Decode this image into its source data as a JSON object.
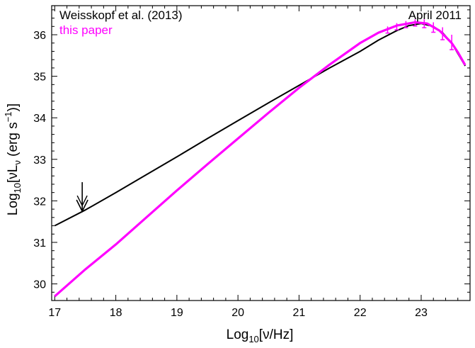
{
  "chart_data": {
    "type": "line",
    "xlabel": {
      "prefix": "Log",
      "sub": "10",
      "body": "[ν/Hz]"
    },
    "ylabel": {
      "prefix": "Log",
      "sub": "10",
      "body": "[νL",
      "body_sub": "ν",
      "unit_open": " (erg s",
      "unit_sup": "−1",
      "unit_close": ")]"
    },
    "xlim": [
      16.95,
      23.8
    ],
    "ylim": [
      29.6,
      36.7
    ],
    "x_ticks": [
      "17",
      "18",
      "19",
      "20",
      "21",
      "22",
      "23"
    ],
    "y_ticks": [
      "30",
      "31",
      "32",
      "33",
      "34",
      "35",
      "36"
    ],
    "annotation": "April 2011",
    "series": [
      {
        "name": "Weisskopf et al. (2013)",
        "color": "#000000",
        "points": [
          [
            17.0,
            31.4
          ],
          [
            17.5,
            31.78
          ],
          [
            18.0,
            32.2
          ],
          [
            18.5,
            32.63
          ],
          [
            19.0,
            33.06
          ],
          [
            19.5,
            33.5
          ],
          [
            20.0,
            33.93
          ],
          [
            20.5,
            34.36
          ],
          [
            21.0,
            34.78
          ],
          [
            21.5,
            35.2
          ],
          [
            22.0,
            35.6
          ],
          [
            22.3,
            35.87
          ],
          [
            22.6,
            36.1
          ],
          [
            22.8,
            36.22
          ],
          [
            23.0,
            36.27
          ],
          [
            23.2,
            36.2
          ],
          [
            23.35,
            36.05
          ],
          [
            23.5,
            35.8
          ],
          [
            23.6,
            35.55
          ],
          [
            23.72,
            35.25
          ]
        ]
      },
      {
        "name": "this paper",
        "color": "#ff00ff",
        "points": [
          [
            17.0,
            29.7
          ],
          [
            17.5,
            30.35
          ],
          [
            18.0,
            30.95
          ],
          [
            18.5,
            31.6
          ],
          [
            19.0,
            32.25
          ],
          [
            19.5,
            32.88
          ],
          [
            20.0,
            33.5
          ],
          [
            20.5,
            34.12
          ],
          [
            21.0,
            34.72
          ],
          [
            21.5,
            35.28
          ],
          [
            22.0,
            35.8
          ],
          [
            22.3,
            36.05
          ],
          [
            22.6,
            36.22
          ],
          [
            22.9,
            36.3
          ],
          [
            23.1,
            36.27
          ],
          [
            23.3,
            36.1
          ],
          [
            23.5,
            35.8
          ],
          [
            23.6,
            35.58
          ],
          [
            23.72,
            35.27
          ]
        ]
      }
    ],
    "upper_limit_arrow": {
      "x": 17.45,
      "y_top": 32.45,
      "y_bottom": 31.75,
      "color": "#000000"
    },
    "error_bars": {
      "color": "#ff00ff",
      "points": [
        [
          22.45,
          36.12,
          0.08
        ],
        [
          22.6,
          36.2,
          0.08
        ],
        [
          22.75,
          36.25,
          0.08
        ],
        [
          22.9,
          36.29,
          0.08
        ],
        [
          23.05,
          36.27,
          0.1
        ],
        [
          23.2,
          36.18,
          0.12
        ],
        [
          23.35,
          36.03,
          0.15
        ],
        [
          23.5,
          35.82,
          0.18
        ]
      ]
    }
  }
}
